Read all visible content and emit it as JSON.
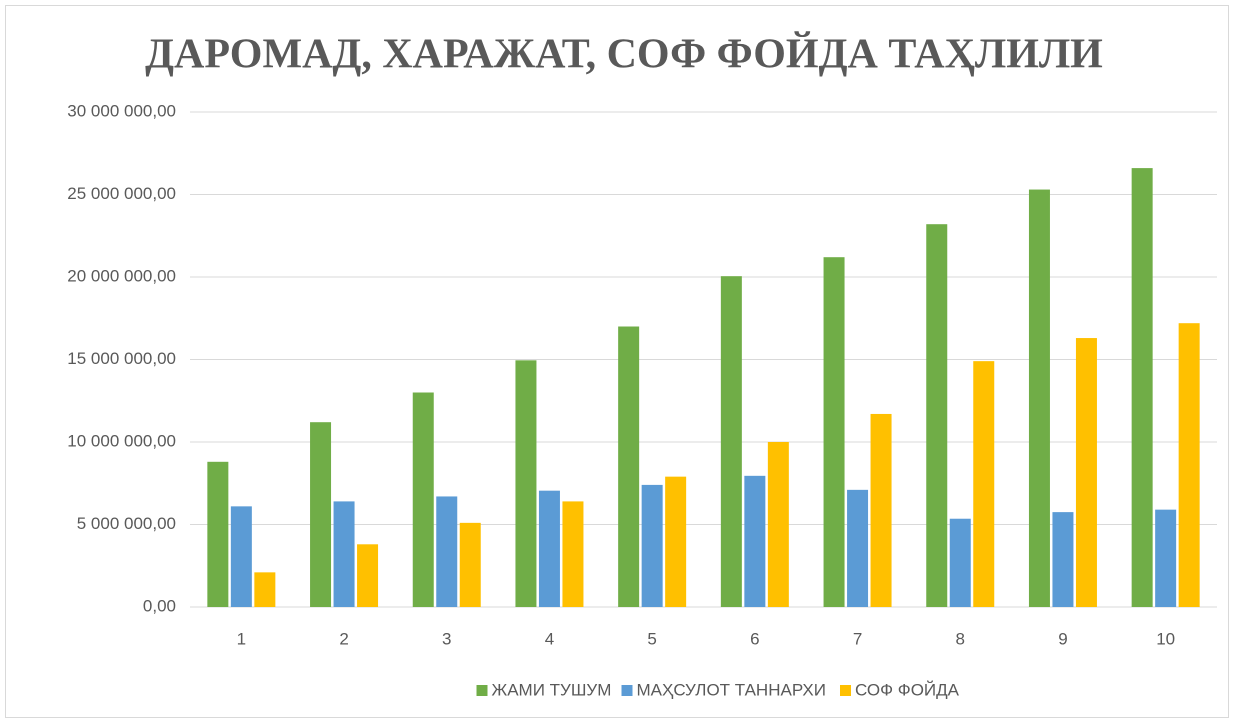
{
  "chart_data": {
    "type": "bar",
    "title": "ДАРОМАД, ХАРАЖАТ, СОФ ФОЙДА ТАҲЛИЛИ",
    "categories": [
      "1",
      "2",
      "3",
      "4",
      "5",
      "6",
      "7",
      "8",
      "9",
      "10"
    ],
    "series": [
      {
        "name": "ЖАМИ ТУШУМ",
        "color": "#70ad47",
        "values": [
          8800000,
          11200000,
          13000000,
          14950000,
          17000000,
          20050000,
          21200000,
          23200000,
          25300000,
          26600000
        ]
      },
      {
        "name": "МАҲСУЛОТ ТАННАРХИ",
        "color": "#5b9bd5",
        "values": [
          6100000,
          6400000,
          6700000,
          7050000,
          7400000,
          7950000,
          7100000,
          5350000,
          5750000,
          5900000
        ]
      },
      {
        "name": "СОФ ФОЙДА",
        "color": "#ffc000",
        "values": [
          2100000,
          3800000,
          5100000,
          6400000,
          7900000,
          10000000,
          11700000,
          14900000,
          16300000,
          17200000
        ]
      }
    ],
    "ylim": [
      0,
      30000000
    ],
    "yticks": [
      {
        "value": 0,
        "label": "0,00"
      },
      {
        "value": 5000000,
        "label": "5 000 000,00"
      },
      {
        "value": 10000000,
        "label": "10 000 000,00"
      },
      {
        "value": 15000000,
        "label": "15 000 000,00"
      },
      {
        "value": 20000000,
        "label": "20 000 000,00"
      },
      {
        "value": 25000000,
        "label": "25 000 000,00"
      },
      {
        "value": 30000000,
        "label": "30 000 000,00"
      }
    ],
    "grid": true,
    "legend": "bottom"
  }
}
